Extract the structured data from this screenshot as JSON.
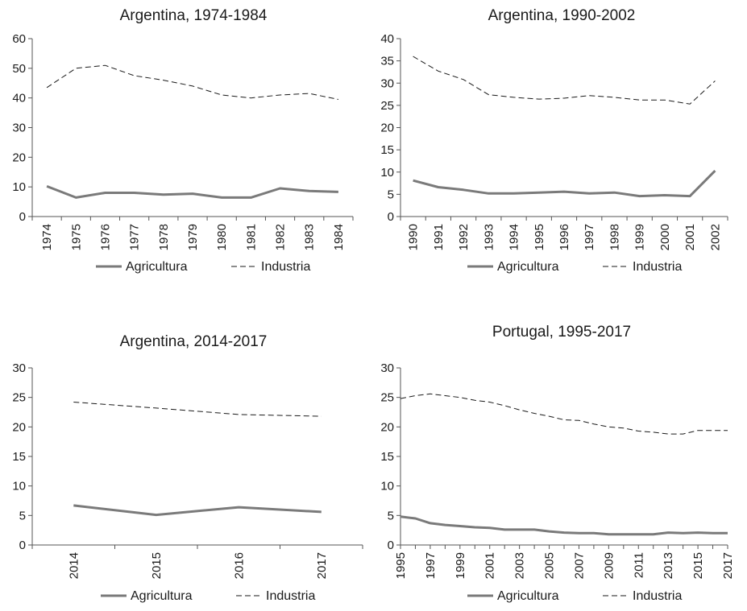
{
  "chart_data": [
    {
      "type": "line",
      "title": "Argentina, 1974-1984",
      "x": [
        "1974",
        "1975",
        "1976",
        "1977",
        "1978",
        "1979",
        "1980",
        "1981",
        "1982",
        "1983",
        "1984"
      ],
      "ylim": [
        0,
        60
      ],
      "yticks": [
        0,
        10,
        20,
        30,
        40,
        50,
        60
      ],
      "xlabel": "",
      "ylabel": "",
      "series": [
        {
          "name": "Agricultura",
          "values": [
            10.2,
            6.4,
            8.0,
            8.0,
            7.4,
            7.7,
            6.4,
            6.4,
            9.5,
            8.6,
            8.3
          ]
        },
        {
          "name": "Industria",
          "values": [
            43.5,
            50.0,
            51.0,
            47.5,
            46.0,
            44.0,
            41.0,
            40.0,
            41.0,
            41.5,
            39.5
          ]
        }
      ]
    },
    {
      "type": "line",
      "title": "Argentina, 1990-2002",
      "x": [
        "1990",
        "1991",
        "1992",
        "1993",
        "1994",
        "1995",
        "1996",
        "1997",
        "1998",
        "1999",
        "2000",
        "2001",
        "2002"
      ],
      "ylim": [
        0,
        40
      ],
      "yticks": [
        0,
        5,
        10,
        15,
        20,
        25,
        30,
        35,
        40
      ],
      "xlabel": "",
      "ylabel": "",
      "series": [
        {
          "name": "Agricultura",
          "values": [
            8.1,
            6.6,
            6.0,
            5.2,
            5.2,
            5.4,
            5.6,
            5.2,
            5.4,
            4.6,
            4.8,
            4.6,
            10.3
          ]
        },
        {
          "name": "Industria",
          "values": [
            36.0,
            32.7,
            30.8,
            27.4,
            26.8,
            26.4,
            26.6,
            27.2,
            26.8,
            26.2,
            26.2,
            25.3,
            30.5
          ]
        }
      ]
    },
    {
      "type": "line",
      "title": "Argentina, 2014-2017",
      "x": [
        "2014",
        "2015",
        "2016",
        "2017"
      ],
      "ylim": [
        0,
        30
      ],
      "yticks": [
        0,
        5,
        10,
        15,
        20,
        25,
        30
      ],
      "xlabel": "",
      "ylabel": "",
      "series": [
        {
          "name": "Agricultura",
          "values": [
            6.7,
            5.1,
            6.4,
            5.6
          ]
        },
        {
          "name": "Industria",
          "values": [
            24.2,
            23.2,
            22.1,
            21.8
          ]
        }
      ]
    },
    {
      "type": "line",
      "title": "Portugal, 1995-2017",
      "x": [
        "1995",
        "1996",
        "1997",
        "1998",
        "1999",
        "2000",
        "2001",
        "2002",
        "2003",
        "2004",
        "2005",
        "2006",
        "2007",
        "2008",
        "2009",
        "2010",
        "2011",
        "2012",
        "2013",
        "2014",
        "2015",
        "2016",
        "2017"
      ],
      "xtick_labels": [
        "1995",
        "1997",
        "1999",
        "2001",
        "2003",
        "2005",
        "2007",
        "2009",
        "2011",
        "2013",
        "2015",
        "2017"
      ],
      "ylim": [
        0,
        30
      ],
      "yticks": [
        0,
        5,
        10,
        15,
        20,
        25,
        30
      ],
      "xlabel": "",
      "ylabel": "",
      "series": [
        {
          "name": "Agricultura",
          "values": [
            4.8,
            4.5,
            3.7,
            3.4,
            3.2,
            3.0,
            2.9,
            2.6,
            2.6,
            2.6,
            2.3,
            2.1,
            2.0,
            2.0,
            1.8,
            1.8,
            1.8,
            1.8,
            2.1,
            2.0,
            2.1,
            2.0,
            2.0
          ]
        },
        {
          "name": "Industria",
          "values": [
            24.8,
            25.3,
            25.6,
            25.3,
            25.0,
            24.5,
            24.2,
            23.6,
            22.9,
            22.3,
            21.8,
            21.2,
            21.1,
            20.5,
            20.0,
            19.8,
            19.3,
            19.1,
            18.8,
            18.8,
            19.4,
            19.4,
            19.4
          ]
        }
      ]
    }
  ],
  "colors": {
    "agricultura": "#7a7a7a",
    "industria": "#1a1a1a",
    "axis": "#555555"
  }
}
